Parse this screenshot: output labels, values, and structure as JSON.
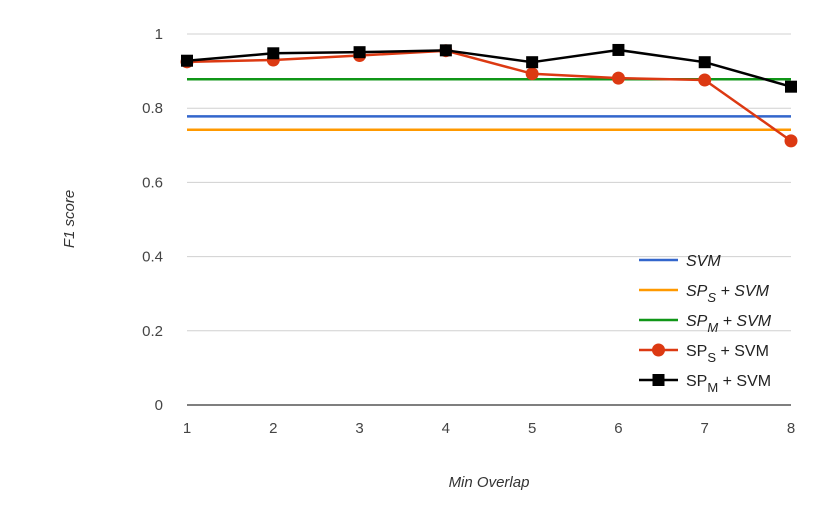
{
  "chart_data": {
    "type": "line",
    "title": "",
    "xlabel": "Min Overlap",
    "ylabel": "F1 score",
    "categories": [
      "1",
      "2",
      "3",
      "4",
      "5",
      "6",
      "7",
      "8"
    ],
    "x": [
      1,
      2,
      3,
      4,
      5,
      6,
      7,
      8
    ],
    "ylim": [
      0,
      1
    ],
    "yticks": [
      "0",
      "0.2",
      "0.4",
      "0.6",
      "0.8",
      "1"
    ],
    "grid": true,
    "legend_position": "bottom-right",
    "series": [
      {
        "name": "SVM",
        "name_base": "SVM",
        "name_sub": "",
        "name_tail": "",
        "kind": "constant",
        "marker": "none",
        "italic": true,
        "color": "#3366cc",
        "values": [
          0.778,
          0.778,
          0.778,
          0.778,
          0.778,
          0.778,
          0.778,
          0.778
        ]
      },
      {
        "name": "SPS + SVM",
        "name_base": "SP",
        "name_sub": "S",
        "name_tail": " + SVM",
        "kind": "constant",
        "marker": "none",
        "italic": true,
        "color": "#ff9900",
        "values": [
          0.742,
          0.742,
          0.742,
          0.742,
          0.742,
          0.742,
          0.742,
          0.742
        ]
      },
      {
        "name": "SPM + SVM",
        "name_base": "SP",
        "name_sub": "M",
        "name_tail": " + SVM",
        "kind": "constant",
        "marker": "none",
        "italic": true,
        "color": "#109618",
        "values": [
          0.878,
          0.878,
          0.878,
          0.878,
          0.878,
          0.878,
          0.878,
          0.878
        ]
      },
      {
        "name": "SPS + SVM",
        "name_base": "SP",
        "name_sub": "S",
        "name_tail": " + SVM",
        "kind": "line",
        "marker": "circle",
        "italic": false,
        "color": "#dc3912",
        "values": [
          0.925,
          0.93,
          0.942,
          0.955,
          0.893,
          0.881,
          0.876,
          0.712
        ]
      },
      {
        "name": "SPM + SVM",
        "name_base": "SP",
        "name_sub": "M",
        "name_tail": " + SVM",
        "kind": "line",
        "marker": "square",
        "italic": false,
        "color": "#000000",
        "values": [
          0.928,
          0.948,
          0.951,
          0.956,
          0.924,
          0.957,
          0.924,
          0.858
        ]
      }
    ]
  }
}
